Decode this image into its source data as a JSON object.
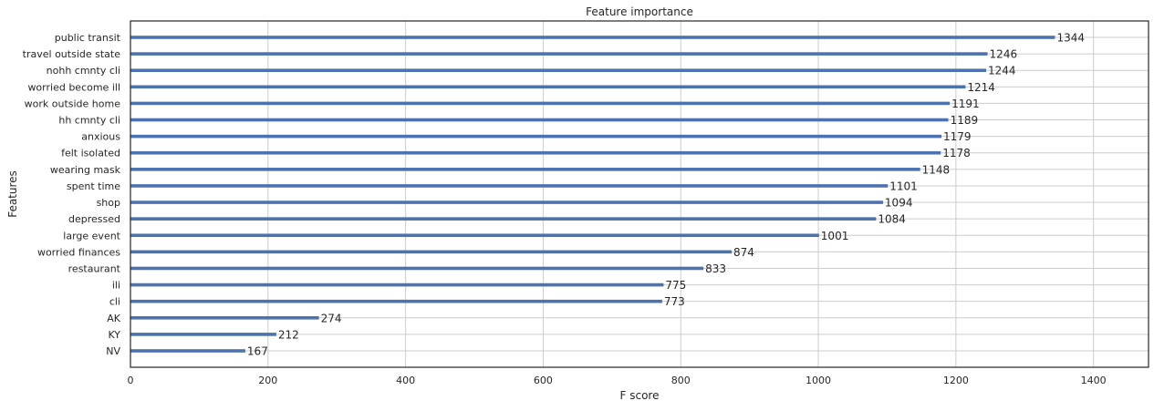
{
  "chart_data": {
    "type": "bar",
    "orientation": "horizontal",
    "title": "Feature importance",
    "xlabel": "F score",
    "ylabel": "Features",
    "xlim": [
      0,
      1480
    ],
    "xticks": [
      0,
      200,
      400,
      600,
      800,
      1000,
      1200,
      1400
    ],
    "grid": true,
    "bar_color": "#4c72b0",
    "grid_color": "#cccccc",
    "categories": [
      "public transit",
      "travel outside state",
      "nohh cmnty cli",
      "worried become ill",
      "work outside home",
      "hh cmnty cli",
      "anxious",
      "felt isolated",
      "wearing mask",
      "spent time",
      "shop",
      "depressed",
      "large event",
      "worried finances",
      "restaurant",
      "ili",
      "cli",
      "AK",
      "KY",
      "NV"
    ],
    "values": [
      1344,
      1246,
      1244,
      1214,
      1191,
      1189,
      1179,
      1178,
      1148,
      1101,
      1094,
      1084,
      1001,
      874,
      833,
      775,
      773,
      274,
      212,
      167
    ]
  }
}
